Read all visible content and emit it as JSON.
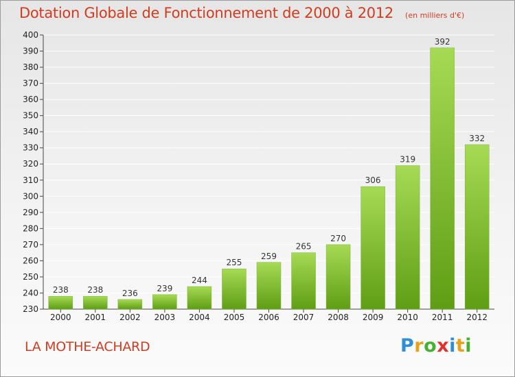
{
  "header": {
    "title": "Dotation Globale de Fonctionnement de 2000 à 2012",
    "subtitle": "(en milliers d'€)"
  },
  "footer": {
    "commune": "LA MOTHE-ACHARD",
    "logo_letters": [
      "P",
      "r",
      "o",
      "x",
      "i",
      "t",
      "i"
    ]
  },
  "colors": {
    "title": "#d23b1e",
    "bar_light": "#a6da55",
    "bar_dark": "#5f9e14",
    "grid": "#ffffff"
  },
  "chart_data": {
    "type": "bar",
    "title": "Dotation Globale de Fonctionnement de 2000 à 2012",
    "subtitle": "(en milliers d'€)",
    "categories": [
      "2000",
      "2001",
      "2002",
      "2003",
      "2004",
      "2005",
      "2006",
      "2007",
      "2008",
      "2009",
      "2010",
      "2011",
      "2012"
    ],
    "values": [
      238,
      238,
      236,
      239,
      244,
      255,
      259,
      265,
      270,
      306,
      319,
      392,
      332
    ],
    "ylim": [
      230,
      400
    ],
    "yticks": [
      230,
      240,
      250,
      260,
      270,
      280,
      290,
      300,
      310,
      320,
      330,
      340,
      350,
      360,
      370,
      380,
      390,
      400
    ],
    "grid": true,
    "xlabel": "",
    "ylabel": ""
  }
}
